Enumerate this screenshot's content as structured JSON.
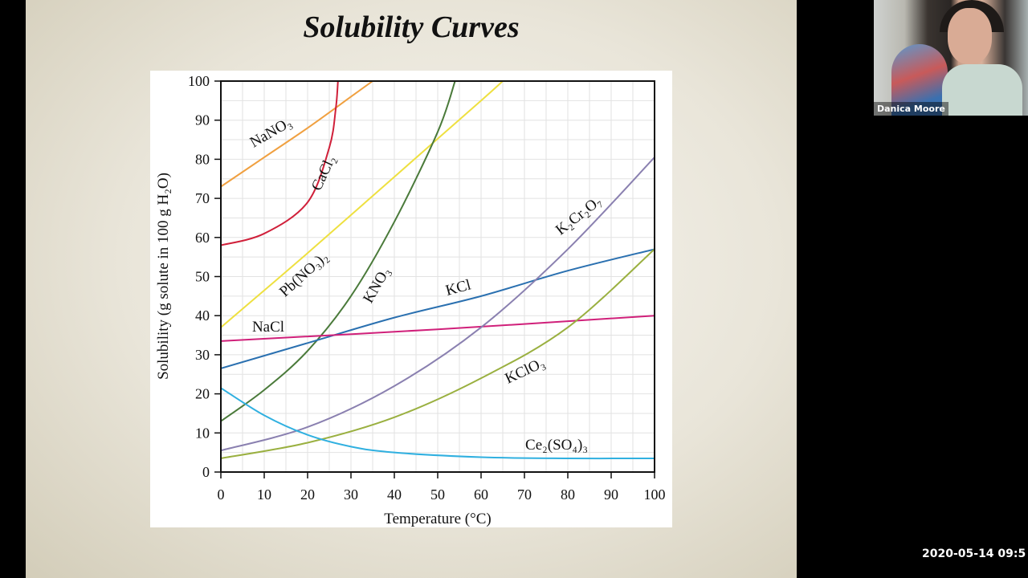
{
  "slide": {
    "title": "Solubility Curves"
  },
  "video": {
    "participant_name": "Danica Moore",
    "timestamp": "2020-05-14 09:5"
  },
  "chart_data": {
    "type": "line",
    "title": "",
    "xlabel": "Temperature (°C)",
    "ylabel": "Solubility (g solute in 100 g H₂O)",
    "xlim": [
      0,
      100
    ],
    "ylim": [
      0,
      100
    ],
    "xticks": [
      "0",
      "10",
      "20",
      "30",
      "40",
      "50",
      "60",
      "70",
      "80",
      "90",
      "100"
    ],
    "yticks": [
      "0",
      "10",
      "20",
      "30",
      "40",
      "50",
      "60",
      "70",
      "80",
      "90",
      "100"
    ],
    "grid": true,
    "legend": "inline labels",
    "series": [
      {
        "name": "NaNO₃",
        "color": "#f0a040",
        "points": [
          [
            0,
            73
          ],
          [
            10,
            80.5
          ],
          [
            20,
            88
          ],
          [
            30,
            96
          ],
          [
            35,
            100
          ]
        ]
      },
      {
        "name": "CaCl₂",
        "color": "#d0203a",
        "points": [
          [
            0,
            58
          ],
          [
            10,
            61
          ],
          [
            20,
            69
          ],
          [
            25,
            83
          ],
          [
            26.5,
            93
          ],
          [
            27,
            100
          ]
        ]
      },
      {
        "name": "Pb(NO₃)₂",
        "color": "#eee040",
        "points": [
          [
            0,
            37
          ],
          [
            20,
            56
          ],
          [
            40,
            75.5
          ],
          [
            60,
            95
          ],
          [
            65,
            100
          ]
        ]
      },
      {
        "name": "KNO₃",
        "color": "#4a7a3a",
        "points": [
          [
            0,
            13
          ],
          [
            10,
            21
          ],
          [
            20,
            31
          ],
          [
            30,
            45
          ],
          [
            40,
            64
          ],
          [
            50,
            87
          ],
          [
            54,
            100
          ]
        ]
      },
      {
        "name": "KCl",
        "color": "#2a70b0",
        "points": [
          [
            0,
            26.5
          ],
          [
            20,
            33
          ],
          [
            40,
            39.5
          ],
          [
            60,
            45
          ],
          [
            80,
            51.5
          ],
          [
            100,
            57
          ]
        ]
      },
      {
        "name": "NaCl",
        "color": "#d0207a",
        "points": [
          [
            0,
            33.5
          ],
          [
            50,
            36.5
          ],
          [
            100,
            40
          ]
        ]
      },
      {
        "name": "K₂Cr₂O₇",
        "color": "#8a80b0",
        "points": [
          [
            0,
            5.5
          ],
          [
            20,
            11.5
          ],
          [
            40,
            22
          ],
          [
            60,
            37
          ],
          [
            80,
            57
          ],
          [
            100,
            80.5
          ]
        ]
      },
      {
        "name": "KClO₃",
        "color": "#9ab040",
        "points": [
          [
            0,
            3.5
          ],
          [
            20,
            7.5
          ],
          [
            40,
            14
          ],
          [
            60,
            24
          ],
          [
            80,
            37
          ],
          [
            100,
            57
          ]
        ]
      },
      {
        "name": "Ce₂(SO₄)₃",
        "color": "#30b0e0",
        "points": [
          [
            0,
            21.5
          ],
          [
            10,
            14.5
          ],
          [
            20,
            9.5
          ],
          [
            30,
            6.5
          ],
          [
            40,
            5
          ],
          [
            60,
            3.8
          ],
          [
            80,
            3.5
          ],
          [
            100,
            3.5
          ]
        ]
      }
    ]
  }
}
